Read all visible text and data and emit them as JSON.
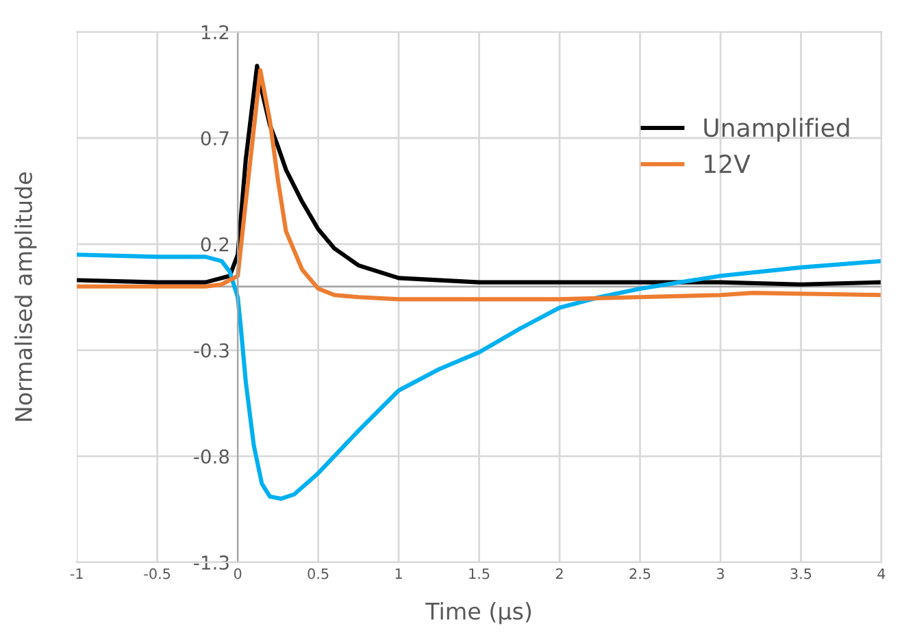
{
  "chart_data": {
    "type": "line",
    "xlabel": "Time (µs)",
    "ylabel": "Normalised amplitude",
    "xlim": [
      -1,
      4
    ],
    "ylim": [
      -1.3,
      1.2
    ],
    "xticks": [
      -1,
      -0.5,
      0,
      0.5,
      1,
      1.5,
      2,
      2.5,
      3,
      3.5,
      4
    ],
    "yticks": [
      -1.3,
      -0.8,
      -0.3,
      0.2,
      0.7,
      1.2
    ],
    "grid": true,
    "legend": "top right",
    "marker": "none",
    "line_style": "solid",
    "series": [
      {
        "name": "Unamplified",
        "color": "#000000",
        "x": [
          -1,
          -0.5,
          -0.2,
          -0.05,
          0,
          0.05,
          0.12,
          0.15,
          0.2,
          0.25,
          0.3,
          0.4,
          0.5,
          0.6,
          0.75,
          1,
          1.5,
          2,
          2.5,
          3,
          3.5,
          4
        ],
        "values": [
          0.03,
          0.02,
          0.02,
          0.05,
          0.15,
          0.6,
          1.04,
          0.92,
          0.76,
          0.66,
          0.55,
          0.4,
          0.27,
          0.18,
          0.1,
          0.04,
          0.02,
          0.02,
          0.02,
          0.02,
          0.01,
          0.02
        ]
      },
      {
        "color": "#00b0f0",
        "x": [
          -1,
          -0.5,
          -0.2,
          -0.1,
          -0.05,
          0,
          0.02,
          0.05,
          0.1,
          0.15,
          0.2,
          0.27,
          0.35,
          0.5,
          0.75,
          1,
          1.25,
          1.5,
          1.75,
          2,
          2.25,
          2.5,
          2.75,
          3,
          3.5,
          4
        ],
        "values": [
          0.15,
          0.14,
          0.14,
          0.12,
          0.07,
          -0.05,
          -0.2,
          -0.45,
          -0.75,
          -0.93,
          -0.99,
          -1.0,
          -0.98,
          -0.88,
          -0.68,
          -0.49,
          -0.39,
          -0.31,
          -0.2,
          -0.1,
          -0.05,
          -0.01,
          0.02,
          0.05,
          0.09,
          0.12
        ]
      },
      {
        "name": "12V",
        "color": "#ed7d31",
        "x": [
          -1,
          -0.2,
          -0.1,
          0,
          0.05,
          0.14,
          0.2,
          0.25,
          0.3,
          0.4,
          0.5,
          0.6,
          0.75,
          1,
          2,
          2.5,
          3,
          3.2,
          4
        ],
        "values": [
          0,
          0,
          0.01,
          0.05,
          0.4,
          1.02,
          0.78,
          0.5,
          0.26,
          0.08,
          -0.01,
          -0.04,
          -0.05,
          -0.06,
          -0.06,
          -0.05,
          -0.04,
          -0.03,
          -0.04
        ]
      }
    ]
  }
}
